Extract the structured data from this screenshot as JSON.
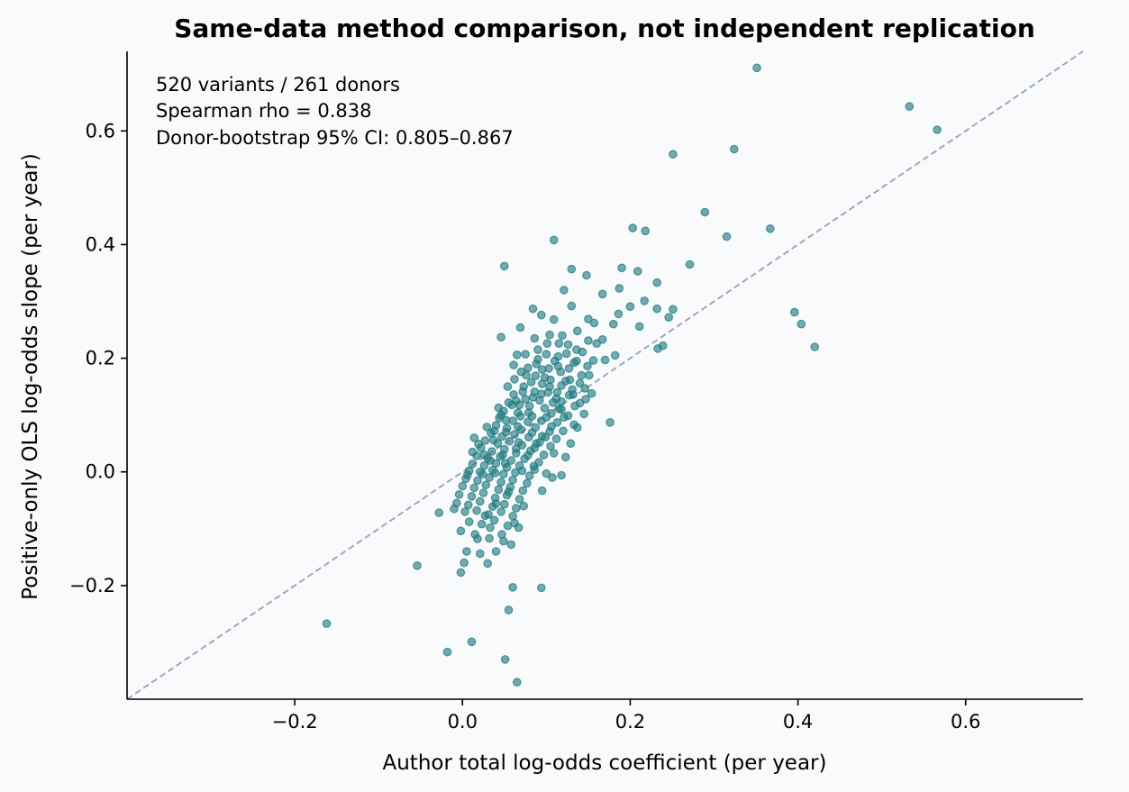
{
  "chart_data": {
    "type": "scatter",
    "title": "Same-data method comparison, not independent replication",
    "xlabel": "Author total log-odds coefficient (per year)",
    "ylabel": "Positive-only OLS log-odds slope (per year)",
    "xlim": [
      -0.4,
      0.74
    ],
    "ylim": [
      -0.4,
      0.74
    ],
    "xticks": [
      -0.2,
      0.0,
      0.2,
      0.4,
      0.6
    ],
    "yticks": [
      -0.2,
      0.0,
      0.2,
      0.4,
      0.6
    ],
    "xtick_labels": [
      "−0.2",
      "0.0",
      "0.2",
      "0.4",
      "0.6"
    ],
    "ytick_labels": [
      "−0.2",
      "0.0",
      "0.2",
      "0.4",
      "0.6"
    ],
    "reference_line": "y = x",
    "grid": false,
    "point_color": "#1f7a80",
    "identity_color": "#9aa1ad",
    "annotations": [
      "520 variants / 261 donors",
      "Spearman rho = 0.838",
      "Donor-bootstrap 95% CI: 0.805–0.867"
    ],
    "points": [
      [
        0.351,
        0.711
      ],
      [
        0.533,
        0.643
      ],
      [
        0.566,
        0.602
      ],
      [
        0.324,
        0.568
      ],
      [
        0.251,
        0.559
      ],
      [
        0.289,
        0.457
      ],
      [
        0.203,
        0.429
      ],
      [
        0.218,
        0.424
      ],
      [
        0.367,
        0.428
      ],
      [
        0.315,
        0.414
      ],
      [
        0.109,
        0.408
      ],
      [
        0.05,
        0.362
      ],
      [
        0.271,
        0.365
      ],
      [
        0.13,
        0.357
      ],
      [
        0.19,
        0.359
      ],
      [
        0.209,
        0.353
      ],
      [
        0.148,
        0.346
      ],
      [
        0.232,
        0.333
      ],
      [
        0.121,
        0.32
      ],
      [
        0.187,
        0.323
      ],
      [
        0.167,
        0.313
      ],
      [
        0.217,
        0.301
      ],
      [
        0.2,
        0.291
      ],
      [
        0.084,
        0.287
      ],
      [
        0.13,
        0.292
      ],
      [
        0.232,
        0.287
      ],
      [
        0.251,
        0.286
      ],
      [
        0.396,
        0.281
      ],
      [
        0.404,
        0.26
      ],
      [
        0.42,
        0.22
      ],
      [
        0.094,
        0.276
      ],
      [
        0.109,
        0.268
      ],
      [
        0.15,
        0.269
      ],
      [
        0.186,
        0.278
      ],
      [
        0.211,
        0.256
      ],
      [
        0.246,
        0.272
      ],
      [
        0.157,
        0.262
      ],
      [
        0.069,
        0.254
      ],
      [
        0.18,
        0.26
      ],
      [
        0.233,
        0.217
      ],
      [
        0.239,
        0.222
      ],
      [
        0.167,
        0.233
      ],
      [
        0.046,
        0.237
      ],
      [
        0.086,
        0.235
      ],
      [
        0.104,
        0.241
      ],
      [
        0.119,
        0.24
      ],
      [
        0.137,
        0.248
      ],
      [
        0.182,
        0.205
      ],
      [
        0.065,
        0.206
      ],
      [
        0.1,
        0.207
      ],
      [
        0.136,
        0.215
      ],
      [
        0.17,
        0.197
      ],
      [
        0.124,
        0.208
      ],
      [
        0.09,
        0.198
      ],
      [
        0.114,
        0.186
      ],
      [
        0.149,
        0.186
      ],
      [
        0.078,
        0.183
      ],
      [
        0.11,
        0.195
      ],
      [
        0.133,
        0.192
      ],
      [
        0.095,
        0.18
      ],
      [
        0.07,
        0.176
      ],
      [
        0.117,
        0.176
      ],
      [
        0.151,
        0.17
      ],
      [
        0.128,
        0.162
      ],
      [
        0.062,
        0.163
      ],
      [
        0.082,
        0.158
      ],
      [
        0.105,
        0.162
      ],
      [
        0.14,
        0.156
      ],
      [
        0.095,
        0.155
      ],
      [
        0.073,
        0.15
      ],
      [
        0.054,
        0.15
      ],
      [
        0.118,
        0.152
      ],
      [
        0.086,
        0.141
      ],
      [
        0.061,
        0.136
      ],
      [
        0.102,
        0.14
      ],
      [
        0.127,
        0.135
      ],
      [
        0.146,
        0.147
      ],
      [
        0.075,
        0.128
      ],
      [
        0.092,
        0.126
      ],
      [
        0.112,
        0.129
      ],
      [
        0.055,
        0.122
      ],
      [
        0.08,
        0.116
      ],
      [
        0.068,
        0.118
      ],
      [
        0.098,
        0.112
      ],
      [
        0.118,
        0.11
      ],
      [
        0.14,
        0.121
      ],
      [
        0.049,
        0.107
      ],
      [
        0.066,
        0.104
      ],
      [
        0.083,
        0.098
      ],
      [
        0.106,
        0.103
      ],
      [
        0.126,
        0.099
      ],
      [
        0.044,
        0.095
      ],
      [
        0.06,
        0.09
      ],
      [
        0.078,
        0.088
      ],
      [
        0.094,
        0.09
      ],
      [
        0.113,
        0.087
      ],
      [
        0.133,
        0.083
      ],
      [
        0.04,
        0.082
      ],
      [
        0.053,
        0.077
      ],
      [
        0.07,
        0.074
      ],
      [
        0.087,
        0.078
      ],
      [
        0.104,
        0.071
      ],
      [
        0.12,
        0.072
      ],
      [
        0.034,
        0.068
      ],
      [
        0.047,
        0.062
      ],
      [
        0.062,
        0.066
      ],
      [
        0.079,
        0.061
      ],
      [
        0.095,
        0.063
      ],
      [
        0.112,
        0.058
      ],
      [
        0.027,
        0.055
      ],
      [
        0.042,
        0.05
      ],
      [
        0.056,
        0.054
      ],
      [
        0.071,
        0.047
      ],
      [
        0.088,
        0.05
      ],
      [
        0.105,
        0.045
      ],
      [
        0.022,
        0.042
      ],
      [
        0.035,
        0.036
      ],
      [
        0.05,
        0.04
      ],
      [
        0.064,
        0.033
      ],
      [
        0.081,
        0.037
      ],
      [
        0.097,
        0.03
      ],
      [
        0.017,
        0.028
      ],
      [
        0.03,
        0.024
      ],
      [
        0.045,
        0.027
      ],
      [
        0.058,
        0.02
      ],
      [
        0.074,
        0.023
      ],
      [
        0.091,
        0.017
      ],
      [
        0.012,
        0.014
      ],
      [
        0.026,
        0.011
      ],
      [
        0.04,
        0.015
      ],
      [
        0.053,
        0.008
      ],
      [
        0.068,
        0.011
      ],
      [
        0.086,
        0.004
      ],
      [
        0.008,
        0.002
      ],
      [
        0.021,
        0.0
      ],
      [
        0.036,
        0.003
      ],
      [
        0.049,
        -0.004
      ],
      [
        0.063,
        -0.001
      ],
      [
        0.08,
        -0.007
      ],
      [
        0.004,
        -0.012
      ],
      [
        0.018,
        -0.015
      ],
      [
        0.032,
        -0.01
      ],
      [
        0.046,
        -0.018
      ],
      [
        0.06,
        -0.014
      ],
      [
        0.077,
        -0.02
      ],
      [
        0.0,
        -0.025
      ],
      [
        0.014,
        -0.028
      ],
      [
        0.028,
        -0.023
      ],
      [
        0.043,
        -0.031
      ],
      [
        0.057,
        -0.027
      ],
      [
        0.072,
        -0.033
      ],
      [
        -0.004,
        -0.04
      ],
      [
        0.011,
        -0.043
      ],
      [
        0.025,
        -0.037
      ],
      [
        0.039,
        -0.046
      ],
      [
        0.053,
        -0.041
      ],
      [
        0.068,
        -0.048
      ],
      [
        -0.007,
        -0.055
      ],
      [
        0.007,
        -0.058
      ],
      [
        0.021,
        -0.052
      ],
      [
        0.036,
        -0.061
      ],
      [
        0.05,
        -0.057
      ],
      [
        0.064,
        -0.064
      ],
      [
        -0.01,
        -0.065
      ],
      [
        0.003,
        -0.07
      ],
      [
        0.017,
        -0.068
      ],
      [
        0.031,
        -0.075
      ],
      [
        0.046,
        -0.07
      ],
      [
        0.06,
        -0.078
      ],
      [
        0.008,
        -0.088
      ],
      [
        0.023,
        -0.092
      ],
      [
        0.038,
        -0.085
      ],
      [
        0.054,
        -0.095
      ],
      [
        0.067,
        -0.098
      ],
      [
        -0.002,
        -0.104
      ],
      [
        0.015,
        -0.11
      ],
      [
        0.032,
        -0.117
      ],
      [
        0.049,
        -0.122
      ],
      [
        0.005,
        -0.14
      ],
      [
        0.021,
        -0.144
      ],
      [
        0.04,
        -0.14
      ],
      [
        0.058,
        -0.128
      ],
      [
        0.002,
        -0.16
      ],
      [
        0.03,
        -0.161
      ],
      [
        -0.002,
        -0.177
      ],
      [
        -0.028,
        -0.072
      ],
      [
        -0.054,
        -0.165
      ],
      [
        -0.162,
        -0.267
      ],
      [
        -0.018,
        -0.317
      ],
      [
        0.011,
        -0.299
      ],
      [
        0.051,
        -0.33
      ],
      [
        0.065,
        -0.37
      ],
      [
        0.055,
        -0.243
      ],
      [
        0.06,
        -0.203
      ],
      [
        0.094,
        -0.204
      ],
      [
        0.095,
        -0.033
      ],
      [
        0.107,
        -0.01
      ],
      [
        0.118,
        -0.006
      ],
      [
        0.129,
        0.05
      ],
      [
        0.137,
        0.078
      ],
      [
        0.176,
        0.087
      ],
      [
        0.109,
        0.033
      ],
      [
        0.123,
        0.026
      ],
      [
        0.085,
        0.01
      ],
      [
        0.1,
        -0.003
      ],
      [
        0.014,
        0.06
      ],
      [
        0.029,
        0.079
      ],
      [
        0.046,
        0.1
      ],
      [
        0.064,
        0.125
      ],
      [
        0.076,
        0.17
      ],
      [
        0.09,
        0.215
      ],
      [
        0.101,
        0.226
      ],
      [
        0.115,
        0.226
      ],
      [
        0.127,
        0.182
      ],
      [
        0.142,
        0.17
      ],
      [
        0.156,
        0.196
      ],
      [
        0.16,
        0.226
      ],
      [
        0.131,
        0.145
      ],
      [
        0.147,
        0.128
      ],
      [
        0.087,
        0.169
      ],
      [
        0.072,
        0.141
      ],
      [
        0.059,
        0.118
      ],
      [
        0.043,
        0.113
      ],
      [
        0.038,
        0.072
      ],
      [
        0.019,
        0.049
      ],
      [
        0.033,
        0.02
      ],
      [
        0.006,
        -0.005
      ],
      [
        0.024,
        -0.004
      ],
      [
        0.039,
        -0.002
      ],
      [
        0.048,
        0.03
      ],
      [
        0.067,
        0.052
      ],
      [
        0.083,
        0.069
      ],
      [
        0.1,
        0.096
      ],
      [
        0.115,
        0.111
      ],
      [
        0.123,
        0.16
      ],
      [
        0.136,
        0.195
      ],
      [
        0.114,
        0.203
      ],
      [
        0.098,
        0.166
      ],
      [
        0.084,
        0.131
      ],
      [
        0.069,
        0.098
      ],
      [
        0.052,
        0.07
      ],
      [
        0.037,
        0.056
      ],
      [
        0.026,
        0.03
      ],
      [
        0.012,
        0.035
      ],
      [
        0.051,
        0.015
      ],
      [
        0.064,
        0.041
      ],
      [
        0.078,
        0.029
      ],
      [
        0.092,
        0.052
      ],
      [
        0.106,
        0.08
      ],
      [
        0.121,
        0.096
      ],
      [
        0.134,
        0.116
      ],
      [
        0.154,
        0.138
      ],
      [
        0.145,
        0.102
      ],
      [
        0.108,
        0.122
      ],
      [
        0.094,
        0.137
      ],
      [
        0.079,
        0.104
      ],
      [
        0.066,
        0.08
      ],
      [
        0.052,
        0.091
      ],
      [
        0.071,
        0.002
      ],
      [
        0.055,
        -0.035
      ],
      [
        0.04,
        -0.056
      ],
      [
        0.027,
        -0.077
      ],
      [
        0.047,
        -0.11
      ],
      [
        0.033,
        -0.098
      ],
      [
        0.018,
        -0.118
      ],
      [
        0.062,
        -0.09
      ],
      [
        0.073,
        -0.06
      ],
      [
        0.086,
        0.042
      ],
      [
        0.099,
        0.061
      ],
      [
        0.113,
        0.14
      ],
      [
        0.103,
        0.182
      ],
      [
        0.088,
        0.19
      ],
      [
        0.075,
        0.207
      ],
      [
        0.061,
        0.188
      ],
      [
        0.126,
        0.224
      ],
      [
        0.15,
        0.231
      ],
      [
        0.143,
        0.211
      ],
      [
        0.132,
        0.136
      ],
      [
        0.118,
        0.124
      ],
      [
        0.104,
        0.15
      ]
    ]
  }
}
